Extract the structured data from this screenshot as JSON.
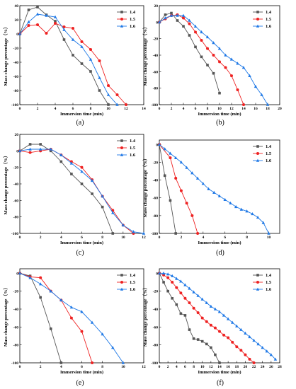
{
  "chart_data": [
    {
      "type": "line",
      "panel_label": "(a)",
      "xlabel": "Immersion time (min)",
      "ylabel": "Mass change percentage（%）",
      "xlim": [
        0,
        14
      ],
      "ylim": [
        -100,
        40
      ],
      "xticks": [
        0,
        2,
        4,
        6,
        8,
        10,
        12,
        14
      ],
      "yticks": [
        -100,
        -80,
        -60,
        -40,
        -20,
        0,
        20,
        40
      ],
      "legend": "top-right",
      "series": [
        {
          "name": "1.4",
          "color": "#555555",
          "marker": "square",
          "x": [
            0,
            1,
            2,
            3,
            4,
            5,
            6,
            7,
            8,
            9,
            10
          ],
          "y": [
            0,
            34,
            38,
            27,
            18,
            -8,
            -30,
            -42,
            -53,
            -80,
            -100
          ]
        },
        {
          "name": "1.5",
          "color": "#ee2222",
          "marker": "circle",
          "x": [
            0,
            1,
            2,
            3,
            4,
            5,
            6,
            7,
            8,
            9,
            10,
            11,
            12
          ],
          "y": [
            0,
            12,
            13,
            1,
            15,
            10,
            8,
            -11,
            -22,
            -38,
            -73,
            -86,
            -100
          ]
        },
        {
          "name": "1.6",
          "color": "#1e78e6",
          "marker": "triangle",
          "x": [
            0,
            1,
            2,
            3,
            4,
            5,
            6,
            7,
            8,
            9,
            10,
            11
          ],
          "y": [
            0,
            17,
            28,
            26,
            24,
            6,
            -8,
            -18,
            -36,
            -62,
            -86,
            -100
          ]
        }
      ]
    },
    {
      "type": "line",
      "panel_label": "(b)",
      "xlabel": "Immersion time (min)",
      "ylabel": "Mass change percentage（%）",
      "xlim": [
        0,
        20
      ],
      "ylim": [
        -100,
        20
      ],
      "xticks": [
        0,
        2,
        4,
        6,
        8,
        10,
        12,
        14,
        16,
        18,
        20
      ],
      "yticks": [
        -100,
        -80,
        -60,
        -40,
        -20,
        0,
        20
      ],
      "legend": "top-right",
      "series": [
        {
          "name": "1.4",
          "color": "#555555",
          "marker": "square",
          "x": [
            0,
            1,
            2,
            3,
            4,
            5,
            6,
            7,
            8,
            9,
            10
          ],
          "y": [
            0,
            9,
            11,
            2,
            -5,
            -16,
            -30,
            -42,
            -52,
            -62,
            -86
          ]
        },
        {
          "name": "1.5",
          "color": "#ee2222",
          "marker": "circle",
          "x": [
            0,
            1,
            2,
            3,
            4,
            5,
            6,
            7,
            8,
            9,
            10,
            11,
            12,
            13,
            14
          ],
          "y": [
            0,
            4,
            8,
            9,
            5,
            -2,
            -12,
            -22,
            -32,
            -40,
            -48,
            -55,
            -65,
            -82,
            -100
          ]
        },
        {
          "name": "1.6",
          "color": "#1e78e6",
          "marker": "triangle",
          "x": [
            0,
            1,
            2,
            3,
            4,
            5,
            6,
            7,
            8,
            9,
            10,
            11,
            12,
            13,
            14,
            15,
            16,
            17,
            18
          ],
          "y": [
            0,
            5,
            8,
            8,
            8,
            2,
            -5,
            -12,
            -18,
            -25,
            -32,
            -40,
            -45,
            -50,
            -55,
            -65,
            -78,
            -88,
            -100
          ]
        }
      ]
    },
    {
      "type": "line",
      "panel_label": "(c)",
      "xlabel": "Immersion time (min)",
      "ylabel": "Mass change percentage（%）",
      "xlim": [
        0,
        12
      ],
      "ylim": [
        -100,
        20
      ],
      "xticks": [
        0,
        2,
        4,
        6,
        8,
        10,
        12
      ],
      "yticks": [
        -100,
        -80,
        -60,
        -40,
        -20,
        0,
        20
      ],
      "legend": "top-right",
      "series": [
        {
          "name": "1.4",
          "color": "#555555",
          "marker": "square",
          "x": [
            0,
            1,
            2,
            3,
            4,
            5,
            6,
            7,
            8,
            9
          ],
          "y": [
            0,
            8,
            8,
            0,
            -13,
            -28,
            -40,
            -52,
            -68,
            -100
          ]
        },
        {
          "name": "1.5",
          "color": "#ee2222",
          "marker": "circle",
          "x": [
            0,
            1,
            2,
            3,
            4,
            5,
            6,
            7,
            8,
            9,
            10,
            11
          ],
          "y": [
            0,
            -2,
            0,
            2,
            -5,
            -13,
            -20,
            -35,
            -55,
            -72,
            -90,
            -100
          ]
        },
        {
          "name": "1.6",
          "color": "#1e78e6",
          "marker": "triangle",
          "x": [
            0,
            1,
            2,
            3,
            4,
            5,
            6,
            7,
            8,
            9,
            10,
            11,
            12
          ],
          "y": [
            0,
            2,
            2,
            2,
            -5,
            -15,
            -25,
            -36,
            -55,
            -75,
            -90,
            -98,
            -100
          ]
        }
      ]
    },
    {
      "type": "line",
      "panel_label": "(d)",
      "xlabel": "Immersion time (min)",
      "ylabel": "Mass change percentage（%）",
      "xlim": [
        0,
        11
      ],
      "ylim": [
        -100,
        5
      ],
      "xticks": [
        0,
        2,
        4,
        6,
        8,
        10
      ],
      "yticks": [
        -100,
        -80,
        -60,
        -40,
        -20,
        0
      ],
      "legend": "top-right",
      "series": [
        {
          "name": "1.4",
          "color": "#555555",
          "marker": "square",
          "x": [
            0,
            0.5,
            1,
            1.5
          ],
          "y": [
            0,
            -35,
            -63,
            -100
          ]
        },
        {
          "name": "1.5",
          "color": "#ee2222",
          "marker": "circle",
          "x": [
            0,
            1,
            1.5,
            2,
            2.5,
            3,
            3.5
          ],
          "y": [
            0,
            -15,
            -38,
            -52,
            -66,
            -80,
            -100
          ]
        },
        {
          "name": "1.6",
          "color": "#1e78e6",
          "marker": "triangle",
          "x": [
            0,
            0.5,
            1,
            1.5,
            2,
            2.5,
            3,
            3.5,
            4,
            4.5,
            5,
            5.5,
            6,
            6.5,
            7,
            7.5,
            8,
            8.5,
            9,
            9.5,
            10
          ],
          "y": [
            0,
            -5,
            -10,
            -15,
            -20,
            -26,
            -32,
            -38,
            -44,
            -50,
            -54,
            -58,
            -62,
            -66,
            -70,
            -73,
            -75,
            -78,
            -82,
            -88,
            -100
          ]
        }
      ]
    },
    {
      "type": "line",
      "panel_label": "(e)",
      "xlabel": "Immersion time (min)",
      "ylabel": "Mass change percentage（%）",
      "xlim": [
        0,
        12
      ],
      "ylim": [
        -100,
        5
      ],
      "xticks": [
        0,
        2,
        4,
        6,
        8,
        10,
        12
      ],
      "yticks": [
        -100,
        -80,
        -60,
        -40,
        -20,
        0
      ],
      "legend": "top-right",
      "series": [
        {
          "name": "1.4",
          "color": "#555555",
          "marker": "square",
          "x": [
            0,
            1,
            2,
            3,
            4
          ],
          "y": [
            0,
            -3,
            -27,
            -62,
            -100
          ]
        },
        {
          "name": "1.5",
          "color": "#ee2222",
          "marker": "circle",
          "x": [
            0,
            1,
            2,
            3,
            4,
            5,
            6,
            7
          ],
          "y": [
            0,
            -4,
            -5,
            -20,
            -30,
            -50,
            -65,
            -100
          ]
        },
        {
          "name": "1.6",
          "color": "#1e78e6",
          "marker": "triangle",
          "x": [
            0,
            1,
            2,
            3,
            4,
            5,
            6,
            7,
            8,
            9,
            10
          ],
          "y": [
            0,
            -5,
            -12,
            -20,
            -30,
            -38,
            -43,
            -55,
            -68,
            -83,
            -100
          ]
        }
      ]
    },
    {
      "type": "line",
      "panel_label": "(f)",
      "xlabel": "Immersion time (min)",
      "ylabel": "Mass change percentage（%）",
      "xlim": [
        0,
        28
      ],
      "ylim": [
        -100,
        5
      ],
      "xticks": [
        0,
        2,
        4,
        6,
        8,
        10,
        12,
        14,
        16,
        18,
        20,
        22,
        24,
        26,
        28
      ],
      "yticks": [
        -100,
        -80,
        -60,
        -40,
        -20,
        0
      ],
      "legend": "top-right",
      "series": [
        {
          "name": "1.4",
          "color": "#555555",
          "marker": "square",
          "x": [
            0,
            1,
            2,
            3,
            4,
            5,
            6,
            7,
            8,
            9,
            10,
            11,
            12,
            13,
            14
          ],
          "y": [
            0,
            -10,
            -20,
            -28,
            -35,
            -45,
            -47,
            -63,
            -73,
            -74,
            -76,
            -79,
            -83,
            -91,
            -100
          ]
        },
        {
          "name": "1.5",
          "color": "#ee2222",
          "marker": "circle",
          "x": [
            0,
            1,
            2,
            3,
            4,
            5,
            6,
            7,
            8,
            9,
            10,
            11,
            12,
            13,
            14,
            15,
            16,
            17,
            18,
            19,
            20,
            21,
            22
          ],
          "y": [
            0,
            -2,
            -5,
            -10,
            -16,
            -22,
            -28,
            -33,
            -39,
            -44,
            -50,
            -54,
            -58,
            -61,
            -65,
            -69,
            -72,
            -77,
            -82,
            -86,
            -91,
            -96,
            -100
          ]
        },
        {
          "name": "1.6",
          "color": "#1e78e6",
          "marker": "triangle",
          "x": [
            0,
            1,
            2,
            3,
            4,
            5,
            6,
            7,
            8,
            9,
            10,
            11,
            12,
            13,
            14,
            15,
            16,
            17,
            18,
            19,
            20,
            21,
            22,
            23,
            24,
            25,
            26,
            27
          ],
          "y": [
            0,
            0,
            -1,
            -3,
            -6,
            -9,
            -13,
            -17,
            -21,
            -25,
            -29,
            -33,
            -37,
            -40,
            -43,
            -47,
            -51,
            -55,
            -59,
            -63,
            -67,
            -71,
            -75,
            -79,
            -83,
            -87,
            -91,
            -96
          ]
        }
      ]
    }
  ]
}
